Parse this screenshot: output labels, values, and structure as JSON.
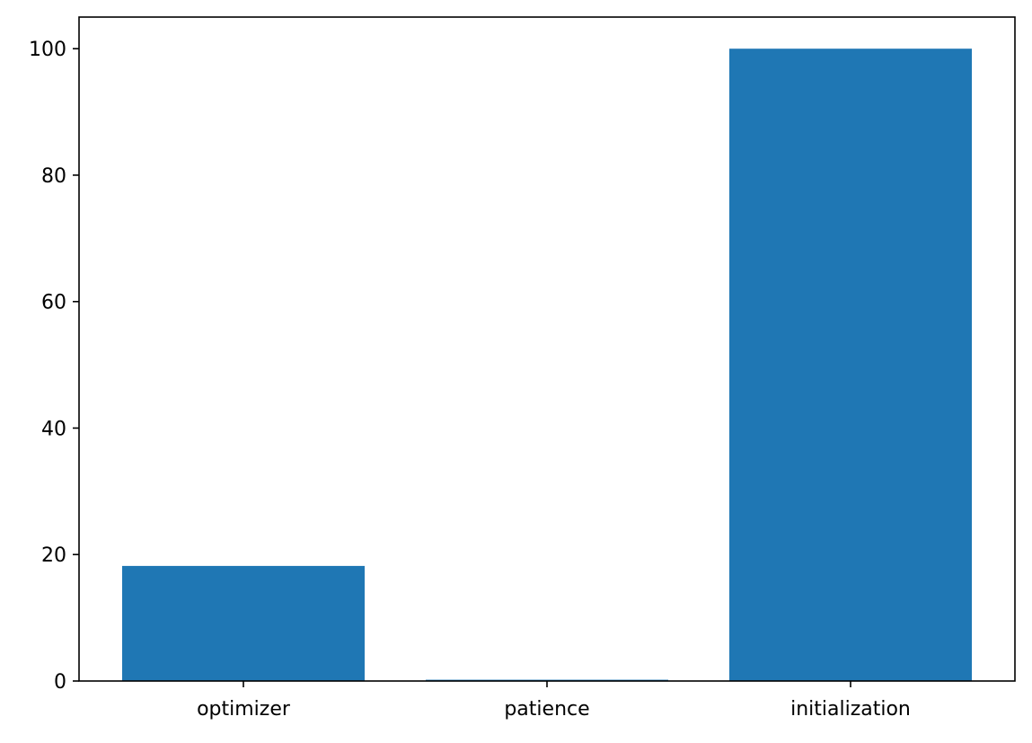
{
  "chart_data": {
    "type": "bar",
    "categories": [
      "optimizer",
      "patience",
      "initialization"
    ],
    "values": [
      18.2,
      0.2,
      100
    ],
    "ylim": [
      0,
      105
    ],
    "yticks": [
      0,
      20,
      40,
      60,
      80,
      100
    ],
    "title": "",
    "xlabel": "",
    "ylabel": "",
    "grid": false,
    "bar_color": "#1f77b4"
  }
}
